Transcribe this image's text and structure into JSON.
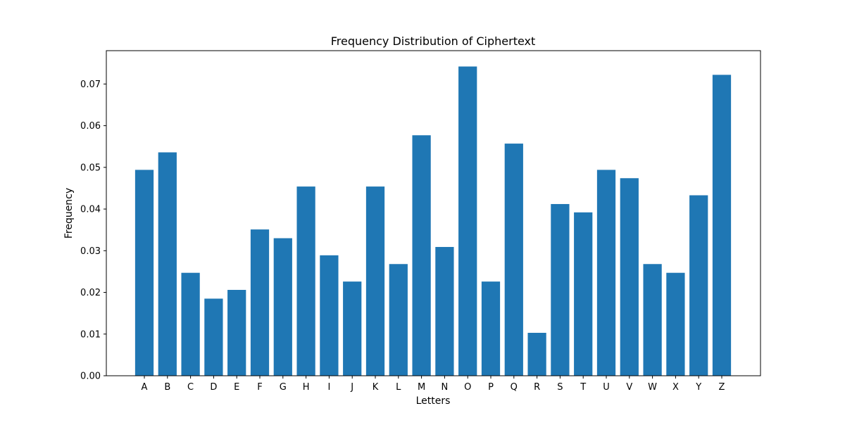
{
  "chart_data": {
    "type": "bar",
    "title": "Frequency Distribution of Ciphertext",
    "xlabel": "Letters",
    "ylabel": "Frequency",
    "categories": [
      "A",
      "B",
      "C",
      "D",
      "E",
      "F",
      "G",
      "H",
      "I",
      "J",
      "K",
      "L",
      "M",
      "N",
      "O",
      "P",
      "Q",
      "R",
      "S",
      "T",
      "U",
      "V",
      "W",
      "X",
      "Y",
      "Z"
    ],
    "values": [
      0.0494,
      0.0536,
      0.0247,
      0.0185,
      0.0206,
      0.0351,
      0.033,
      0.0454,
      0.0289,
      0.0226,
      0.0454,
      0.0268,
      0.0577,
      0.0309,
      0.0742,
      0.0226,
      0.0557,
      0.0103,
      0.0412,
      0.0392,
      0.0494,
      0.0474,
      0.0268,
      0.0247,
      0.0433,
      0.0722
    ],
    "ylim": [
      0,
      0.078
    ],
    "yticks": [
      0.0,
      0.01,
      0.02,
      0.03,
      0.04,
      0.05,
      0.06,
      0.07
    ],
    "ytick_labels": [
      "0.00",
      "0.01",
      "0.02",
      "0.03",
      "0.04",
      "0.05",
      "0.06",
      "0.07"
    ],
    "grid": false,
    "bar_color": "#1f77b4"
  }
}
